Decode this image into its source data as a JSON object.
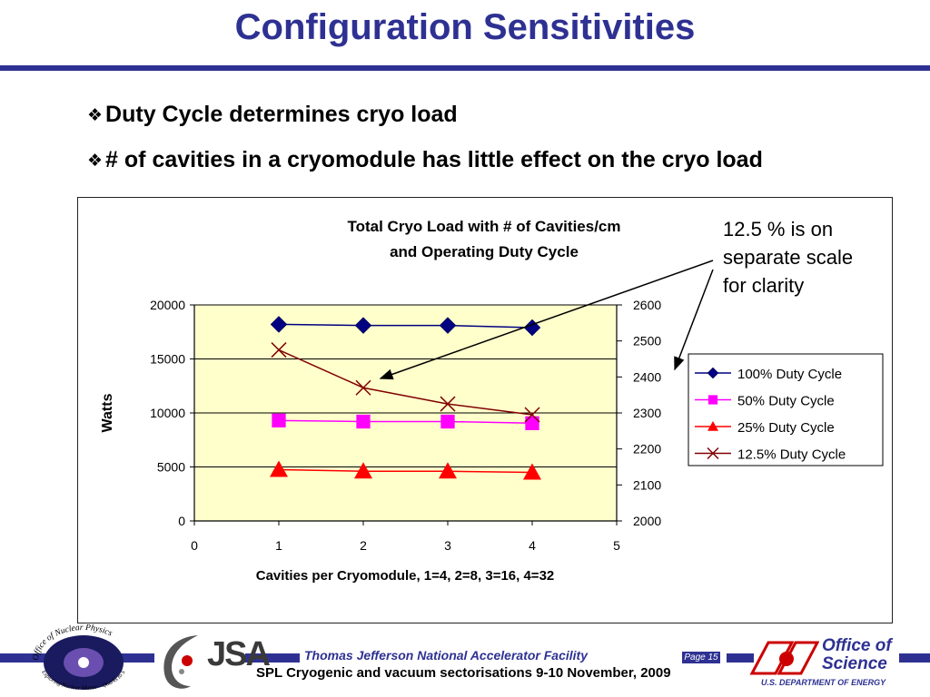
{
  "slide": {
    "title": "Configuration Sensitivities",
    "bullets": [
      "Duty Cycle determines cryo load",
      "# of cavities in a cryomodule has little effect on the cryo load"
    ],
    "bullet_glyph": "❖",
    "annotation": [
      "12.5 % is on",
      "separate scale",
      "for clarity"
    ]
  },
  "footer": {
    "lab_name": "Thomas Jefferson National Accelerator Facility",
    "event": "SPL Cryogenic and vacuum sectorisations 9-10 November, 2009",
    "page": "Page 15",
    "nuclear_physics_logo_text": "Office of Nuclear Physics",
    "nuclear_physics_tagline": "Exploring Nuclear Matter - Quarks to Stars",
    "jsa_logo": "JSA",
    "doe_office": [
      "Office of",
      "Science"
    ],
    "doe_dept": "U.S. DEPARTMENT OF ENERGY"
  },
  "chart_data": {
    "type": "line",
    "title": [
      "Total Cryo Load with # of Cavities/cm",
      "and Operating Duty Cycle"
    ],
    "xlabel": "Cavities per Cryomodule, 1=4, 2=8, 3=16, 4=32",
    "ylabel": "Watts",
    "xlim": [
      0,
      5
    ],
    "ylim": [
      0,
      20000
    ],
    "y2lim": [
      2000,
      2600
    ],
    "xticks": [
      "0",
      "1",
      "2",
      "3",
      "4",
      "5"
    ],
    "yticks": [
      "0",
      "5000",
      "10000",
      "15000",
      "20000"
    ],
    "y2ticks": [
      "2000",
      "2100",
      "2200",
      "2300",
      "2400",
      "2500",
      "2600"
    ],
    "plot_background": "#ffffcc",
    "grid": "horizontal major (primary axis)",
    "legend_position": "right",
    "series": [
      {
        "name": "100% Duty Cycle",
        "axis": "primary",
        "marker": "diamond",
        "color": "#000080",
        "marker_color": "#000080",
        "x": [
          1,
          2,
          3,
          4
        ],
        "values": [
          18200,
          18100,
          18100,
          17900
        ]
      },
      {
        "name": "50% Duty Cycle",
        "axis": "primary",
        "marker": "square",
        "color": "#ff00ff",
        "marker_color": "#ff00ff",
        "x": [
          1,
          2,
          3,
          4
        ],
        "values": [
          9300,
          9200,
          9200,
          9050
        ]
      },
      {
        "name": "25% Duty Cycle",
        "axis": "primary",
        "marker": "triangle",
        "color": "#ff0000",
        "marker_color": "#ff0000",
        "x": [
          1,
          2,
          3,
          4
        ],
        "values": [
          4750,
          4600,
          4600,
          4500
        ]
      },
      {
        "name": "12.5% Duty Cycle",
        "axis": "secondary",
        "marker": "x",
        "color": "#800000",
        "marker_color": "#800000",
        "x": [
          1,
          2,
          3,
          4
        ],
        "values": [
          2475,
          2370,
          2325,
          2295
        ]
      }
    ]
  }
}
